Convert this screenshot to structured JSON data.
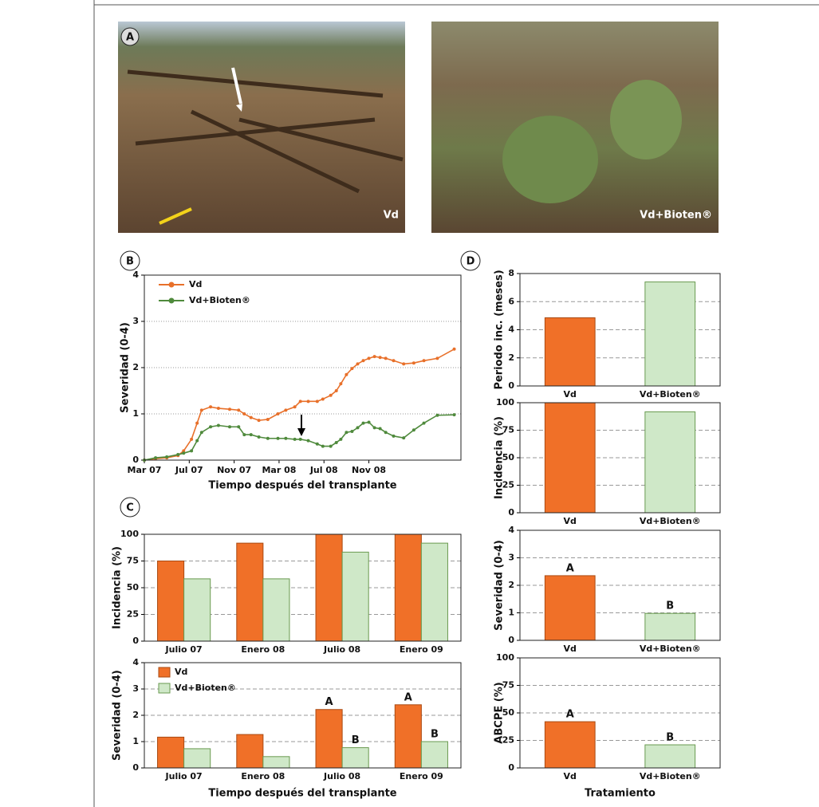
{
  "photos": {
    "panel": "A",
    "labels": [
      "Vd",
      "Vd+Bioten®"
    ]
  },
  "chart_data": [
    {
      "type": "line",
      "panel": "B",
      "ylabel": "Severidad (0-4)",
      "xlabel": "Tiempo después del transplante",
      "x": [
        0,
        1,
        2,
        3,
        3.5,
        4.2,
        4.7,
        5.1,
        5.9,
        6.6,
        7.6,
        8.4,
        8.9,
        9.5,
        10.2,
        11,
        11.9,
        12.6,
        13.4,
        13.9,
        14.6,
        15.4,
        15.9,
        16.6,
        17.1,
        17.5,
        18,
        18.5,
        19,
        19.5,
        20,
        20.5,
        21,
        21.5,
        22.2,
        23.1,
        24,
        24.9,
        26.1,
        27.6
      ],
      "series": [
        {
          "name": "Vd",
          "color": "#e8702a",
          "values": [
            0,
            0.03,
            0.05,
            0.1,
            0.2,
            0.45,
            0.8,
            1.08,
            1.15,
            1.12,
            1.1,
            1.08,
            1.0,
            0.92,
            0.86,
            0.88,
            1.0,
            1.08,
            1.15,
            1.27,
            1.27,
            1.27,
            1.32,
            1.4,
            1.5,
            1.65,
            1.85,
            1.98,
            2.08,
            2.15,
            2.2,
            2.24,
            2.22,
            2.2,
            2.15,
            2.08,
            2.1,
            2.15,
            2.2,
            2.4
          ]
        },
        {
          "name": "Vd+Bioten®",
          "color": "#4f8a3c",
          "values": [
            0,
            0.05,
            0.07,
            0.12,
            0.15,
            0.2,
            0.42,
            0.6,
            0.72,
            0.75,
            0.72,
            0.72,
            0.55,
            0.55,
            0.5,
            0.47,
            0.47,
            0.47,
            0.45,
            0.45,
            0.42,
            0.35,
            0.3,
            0.3,
            0.38,
            0.45,
            0.6,
            0.62,
            0.7,
            0.8,
            0.82,
            0.7,
            0.68,
            0.6,
            0.52,
            0.48,
            0.65,
            0.8,
            0.97,
            0.98
          ]
        }
      ],
      "xlim": [
        0,
        28.2
      ],
      "xticks": [
        {
          "value": 0,
          "label": "Mar 07"
        },
        {
          "value": 4,
          "label": "Jul 07"
        },
        {
          "value": 8,
          "label": "Nov 07"
        },
        {
          "value": 12,
          "label": "Mar 08"
        },
        {
          "value": 16,
          "label": "Jul 08"
        },
        {
          "value": 20,
          "label": "Nov 08"
        }
      ],
      "ylim": [
        0,
        4
      ],
      "yticks": [
        0,
        1,
        2,
        3,
        4
      ],
      "grid": true,
      "legend": "upper left"
    },
    {
      "type": "bar",
      "panel": "C",
      "ylabel": "Incidencia (%)",
      "categories": [
        "Julio 07",
        "Enero 08",
        "Julio 08",
        "Enero 09"
      ],
      "series": [
        {
          "name": "Vd",
          "color": "#f07028",
          "values": [
            75,
            91.7,
            100,
            100
          ]
        },
        {
          "name": "Vd+Bioten®",
          "color": "#cfe8c8",
          "values": [
            58.3,
            58.3,
            83.3,
            91.7
          ]
        }
      ],
      "ylim": [
        0,
        100
      ],
      "yticks": [
        0,
        25,
        50,
        75,
        100
      ],
      "grid": true
    },
    {
      "type": "bar",
      "ylabel": "Severidad (0-4)",
      "xlabel": "Tiempo después del transplante",
      "categories": [
        "Julio 07",
        "Enero 08",
        "Julio 08",
        "Enero 09"
      ],
      "series": [
        {
          "name": "Vd",
          "color": "#f07028",
          "values": [
            1.17,
            1.27,
            2.22,
            2.4
          ],
          "letters": [
            null,
            null,
            "A",
            "A"
          ]
        },
        {
          "name": "Vd+Bioten®",
          "color": "#cfe8c8",
          "values": [
            0.73,
            0.43,
            0.77,
            1.0
          ],
          "letters": [
            null,
            null,
            "B",
            "B"
          ]
        }
      ],
      "ylim": [
        0,
        4
      ],
      "yticks": [
        0,
        1,
        2,
        3,
        4
      ],
      "grid": true,
      "legend": "upper left"
    },
    {
      "type": "bar",
      "panel": "D",
      "ylabel": "Periodo inc. (meses)",
      "categories": [
        "Vd",
        "Vd+Bioten®"
      ],
      "values": [
        4.85,
        7.4
      ],
      "colors": [
        "#f07028",
        "#cfe8c8"
      ],
      "ylim": [
        0,
        8
      ],
      "yticks": [
        0,
        2,
        4,
        6,
        8
      ],
      "grid": true
    },
    {
      "type": "bar",
      "ylabel": "Incidencia (%)",
      "categories": [
        "Vd",
        "Vd+Bioten®"
      ],
      "values": [
        100,
        91.7
      ],
      "colors": [
        "#f07028",
        "#cfe8c8"
      ],
      "ylim": [
        0,
        100
      ],
      "yticks": [
        0,
        25,
        50,
        75,
        100
      ],
      "grid": true
    },
    {
      "type": "bar",
      "ylabel": "Severidad (0-4)",
      "categories": [
        "Vd",
        "Vd+Bioten®"
      ],
      "values": [
        2.35,
        0.98
      ],
      "colors": [
        "#f07028",
        "#cfe8c8"
      ],
      "letters": [
        "A",
        "B"
      ],
      "ylim": [
        0,
        4
      ],
      "yticks": [
        0,
        1,
        2,
        3,
        4
      ],
      "grid": true
    },
    {
      "type": "bar",
      "ylabel": "ABCPE (%)",
      "xlabel": "Tratamiento",
      "categories": [
        "Vd",
        "Vd+Bioten®"
      ],
      "values": [
        42,
        21
      ],
      "colors": [
        "#f07028",
        "#cfe8c8"
      ],
      "letters": [
        "A",
        "B"
      ],
      "ylim": [
        0,
        100
      ],
      "yticks": [
        0,
        25,
        50,
        75,
        100
      ],
      "grid": true
    }
  ]
}
